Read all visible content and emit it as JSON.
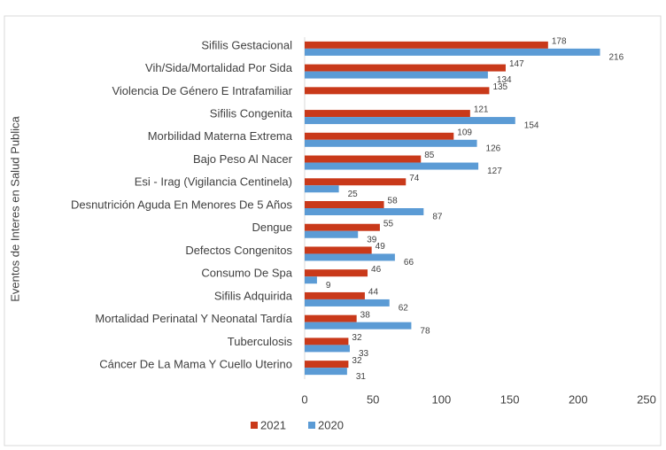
{
  "chart_data": {
    "type": "bar",
    "orientation": "horizontal",
    "y_axis_label": "Eventos de Interes en Salud Publica",
    "categories": [
      "Sifilis Gestacional",
      "Vih/Sida/Mortalidad Por Sida",
      "Violencia De Género E Intrafamiliar",
      "Sifilis Congenita",
      "Morbilidad Materna Extrema",
      "Bajo Peso Al Nacer",
      "Esi - Irag (Vigilancia Centinela)",
      "Desnutrición Aguda En Menores De 5 Años",
      "Dengue",
      "Defectos Congenitos",
      "Consumo De Spa",
      "Sifilis Adquirida",
      "Mortalidad Perinatal Y Neonatal Tardía",
      "Tuberculosis",
      "Cáncer De La Mama Y Cuello Uterino"
    ],
    "series": [
      {
        "name": "2021",
        "color": "#c9391a",
        "values": [
          178,
          147,
          135,
          121,
          109,
          85,
          74,
          58,
          55,
          49,
          46,
          44,
          38,
          32,
          32
        ]
      },
      {
        "name": "2020",
        "color": "#5b9bd5",
        "values": [
          216,
          134,
          null,
          154,
          126,
          127,
          25,
          87,
          39,
          66,
          9,
          62,
          78,
          33,
          31
        ]
      }
    ],
    "xlim": [
      0,
      250
    ],
    "xticks": [
      0,
      50,
      100,
      150,
      200,
      250
    ],
    "grid": false,
    "legend": "bottom"
  }
}
